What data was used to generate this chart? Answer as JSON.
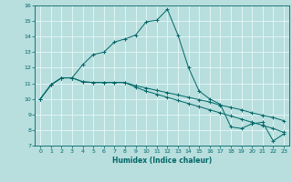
{
  "xlabel": "Humidex (Indice chaleur)",
  "xlim": [
    -0.5,
    23.5
  ],
  "ylim": [
    7,
    16
  ],
  "xticks": [
    0,
    1,
    2,
    3,
    4,
    5,
    6,
    7,
    8,
    9,
    10,
    11,
    12,
    13,
    14,
    15,
    16,
    17,
    18,
    19,
    20,
    21,
    22,
    23
  ],
  "yticks": [
    7,
    8,
    9,
    10,
    11,
    12,
    13,
    14,
    15,
    16
  ],
  "bg_color": "#b8dede",
  "line_color": "#006666",
  "grid_color": "#e8f8f8",
  "series1_x": [
    0,
    1,
    2,
    3,
    4,
    5,
    6,
    7,
    8,
    9,
    10,
    11,
    12,
    13,
    14,
    15,
    16,
    17,
    18,
    19,
    20,
    21,
    22,
    23
  ],
  "series1_y": [
    10.0,
    10.9,
    11.35,
    11.35,
    11.1,
    11.05,
    11.05,
    11.05,
    11.05,
    10.85,
    10.7,
    10.55,
    10.4,
    10.25,
    10.1,
    9.95,
    9.8,
    9.6,
    9.45,
    9.3,
    9.1,
    8.95,
    8.8,
    8.6
  ],
  "series2_x": [
    0,
    1,
    2,
    3,
    4,
    5,
    6,
    7,
    8,
    9,
    10,
    11,
    12,
    13,
    14,
    15,
    16,
    17,
    18,
    19,
    20,
    21,
    22,
    23
  ],
  "series2_y": [
    10.0,
    10.9,
    11.35,
    11.35,
    11.1,
    11.05,
    11.05,
    11.05,
    11.05,
    10.75,
    10.5,
    10.3,
    10.1,
    9.9,
    9.7,
    9.5,
    9.3,
    9.1,
    8.9,
    8.7,
    8.5,
    8.3,
    8.1,
    7.85
  ],
  "series3_x": [
    0,
    1,
    2,
    3,
    4,
    5,
    6,
    7,
    8,
    9,
    10,
    11,
    12,
    13,
    14,
    15,
    16,
    17,
    18,
    19,
    20,
    21,
    22,
    23
  ],
  "series3_y": [
    10.0,
    10.9,
    11.35,
    11.35,
    12.2,
    12.85,
    13.0,
    13.65,
    13.85,
    14.1,
    14.95,
    15.05,
    15.75,
    14.1,
    12.0,
    10.5,
    10.0,
    9.65,
    8.2,
    8.1,
    8.4,
    8.5,
    7.3,
    7.75
  ]
}
